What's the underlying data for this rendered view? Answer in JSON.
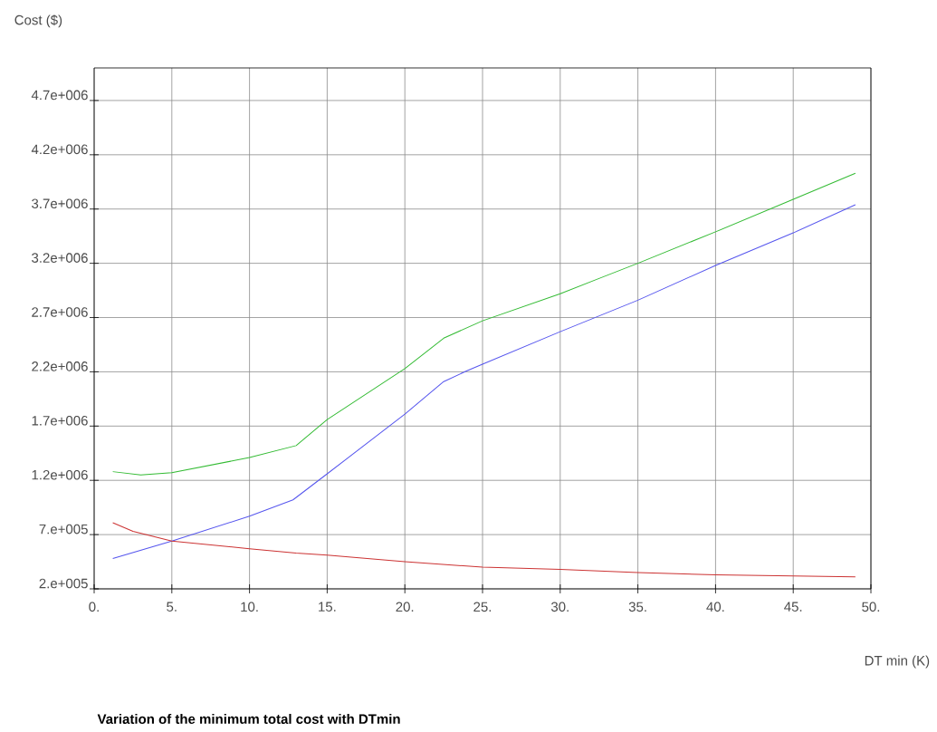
{
  "chart_data": {
    "type": "line",
    "title": "Variation of the minimum total cost with DTmin",
    "xlabel": "DT min (K)",
    "ylabel": "Cost ($)",
    "xlim": [
      0,
      50
    ],
    "ylim": [
      200000,
      5000000
    ],
    "xticks": [
      {
        "value": 0,
        "label": "0."
      },
      {
        "value": 5,
        "label": "5."
      },
      {
        "value": 10,
        "label": "10."
      },
      {
        "value": 15,
        "label": "15."
      },
      {
        "value": 20,
        "label": "20."
      },
      {
        "value": 25,
        "label": "25."
      },
      {
        "value": 30,
        "label": "30."
      },
      {
        "value": 35,
        "label": "35."
      },
      {
        "value": 40,
        "label": "40."
      },
      {
        "value": 45,
        "label": "45."
      },
      {
        "value": 50,
        "label": "50."
      }
    ],
    "yticks": [
      {
        "value": 200000,
        "label": "2.e+005"
      },
      {
        "value": 700000,
        "label": "7.e+005"
      },
      {
        "value": 1200000,
        "label": "1.2e+006"
      },
      {
        "value": 1700000,
        "label": "1.7e+006"
      },
      {
        "value": 2200000,
        "label": "2.2e+006"
      },
      {
        "value": 2700000,
        "label": "2.7e+006"
      },
      {
        "value": 3200000,
        "label": "3.2e+006"
      },
      {
        "value": 3700000,
        "label": "3.7e+006"
      },
      {
        "value": 4200000,
        "label": "4.2e+006"
      },
      {
        "value": 4700000,
        "label": "4.7e+006"
      }
    ],
    "grid": true,
    "marker": "none",
    "series": [
      {
        "color": "#33bb33",
        "x": [
          1.2,
          3,
          5,
          10,
          13,
          15,
          20,
          22.5,
          25,
          30,
          32.5,
          35,
          40,
          45,
          49
        ],
        "values": [
          1280000,
          1250000,
          1270000,
          1410000,
          1520000,
          1760000,
          2230000,
          2510000,
          2670000,
          2920000,
          3060000,
          3200000,
          3490000,
          3790000,
          4030000
        ]
      },
      {
        "color": "#5555ee",
        "x": [
          1.2,
          5,
          10,
          12.8,
          15,
          20,
          22.5,
          24,
          25,
          30,
          35,
          40,
          45,
          49
        ],
        "values": [
          480000,
          640000,
          870000,
          1020000,
          1260000,
          1810000,
          2110000,
          2210000,
          2270000,
          2570000,
          2860000,
          3180000,
          3480000,
          3740000
        ]
      },
      {
        "color": "#cc3333",
        "x": [
          1.2,
          2.5,
          5,
          10,
          13,
          15,
          20,
          25,
          30,
          35,
          40,
          45,
          49
        ],
        "values": [
          810000,
          730000,
          640000,
          570000,
          530000,
          510000,
          450000,
          400000,
          380000,
          350000,
          330000,
          320000,
          310000
        ]
      }
    ]
  }
}
